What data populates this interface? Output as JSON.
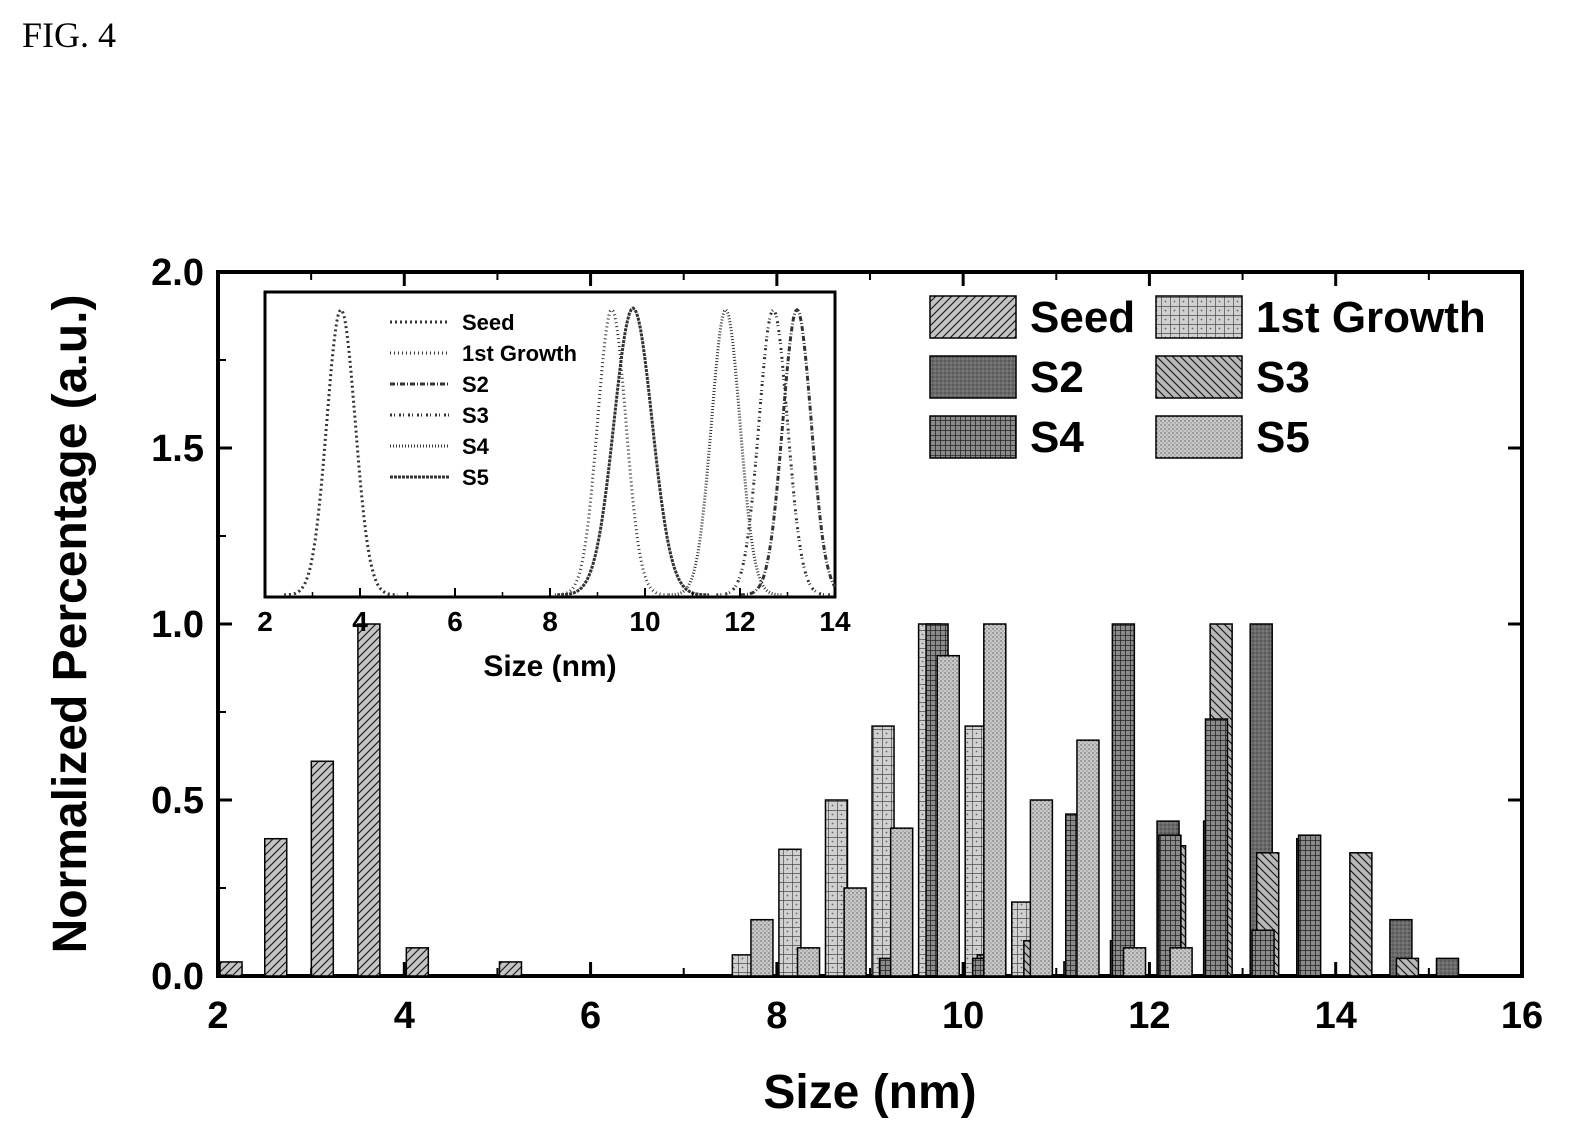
{
  "figure_label": "FIG. 4",
  "chart_data": [
    {
      "type": "bar",
      "title": "",
      "xlabel": "Size (nm)",
      "ylabel": "Normalized Percentage (a.u.)",
      "xlim": [
        2,
        16
      ],
      "ylim": [
        0,
        2.0
      ],
      "xticks": [
        "2",
        "4",
        "6",
        "8",
        "10",
        "12",
        "14",
        "16"
      ],
      "yticks": [
        "0.0",
        "0.5",
        "1.0",
        "1.5",
        "2.0"
      ],
      "legend": "top-right",
      "series": [
        {
          "name": "Seed",
          "pattern": "diag",
          "x": [
            2.14,
            2.62,
            3.12,
            3.62,
            4.14,
            5.14
          ],
          "values": [
            0.04,
            0.39,
            0.61,
            1.0,
            0.08,
            0.04
          ]
        },
        {
          "name": "1st Growth",
          "pattern": "grid",
          "x": [
            7.64,
            8.14,
            8.64,
            9.14,
            9.64,
            10.14,
            10.64
          ],
          "values": [
            0.06,
            0.36,
            0.5,
            0.71,
            1.0,
            0.71,
            0.21
          ]
        },
        {
          "name": "S2",
          "pattern": "dark",
          "x": [
            11.2,
            11.7,
            12.2,
            12.7,
            13.2,
            13.7,
            14.7,
            15.2
          ],
          "values": [
            0.04,
            0.1,
            0.44,
            0.44,
            1.0,
            0.39,
            0.16,
            0.05
          ]
        },
        {
          "name": "S3",
          "pattern": "antidiag",
          "x": [
            9.77,
            10.27,
            10.77,
            11.77,
            12.27,
            12.77,
            13.27,
            14.27,
            14.77
          ],
          "values": [
            0.07,
            0.06,
            0.1,
            0.05,
            0.37,
            1.0,
            0.35,
            0.35,
            0.05
          ]
        },
        {
          "name": "S4",
          "pattern": "dense",
          "x": [
            9.22,
            9.72,
            10.22,
            11.22,
            11.72,
            12.22,
            12.72,
            13.22,
            13.72
          ],
          "values": [
            0.05,
            1.0,
            0.05,
            0.46,
            1.0,
            0.4,
            0.73,
            0.13,
            0.4
          ]
        },
        {
          "name": "S5",
          "pattern": "dots",
          "x": [
            7.84,
            8.34,
            8.84,
            9.34,
            9.84,
            10.34,
            10.84,
            11.34,
            11.84,
            12.34
          ],
          "values": [
            0.16,
            0.08,
            0.25,
            0.42,
            0.91,
            1.0,
            0.5,
            0.67,
            0.08,
            0.08
          ]
        }
      ]
    },
    {
      "type": "line",
      "title": "",
      "xlabel": "Size (nm)",
      "ylabel": "",
      "xlim": [
        2,
        14
      ],
      "ylim": [
        0,
        1.85
      ],
      "xticks": [
        "2",
        "4",
        "6",
        "8",
        "10",
        "12",
        "14"
      ],
      "legend": "top-left",
      "series": [
        {
          "name": "Seed",
          "dash": "2,3",
          "center": 3.6,
          "sigma": 0.3,
          "height": 1.73
        },
        {
          "name": "1st Growth",
          "dash": "1,3",
          "center": 9.3,
          "sigma": 0.3,
          "height": 1.73
        },
        {
          "name": "S2",
          "dash": "5,2,1,2",
          "center": 13.2,
          "sigma": 0.3,
          "height": 1.73
        },
        {
          "name": "S3",
          "dash": "2,2,1,4",
          "center": 12.7,
          "sigma": 0.3,
          "height": 1.73
        },
        {
          "name": "S4",
          "dash": "1,2",
          "center": 11.7,
          "sigma": 0.3,
          "height": 1.73
        },
        {
          "name": "S5",
          "dash": "3,1",
          "center": 9.75,
          "sigma": 0.4,
          "height": 1.74
        }
      ]
    }
  ]
}
